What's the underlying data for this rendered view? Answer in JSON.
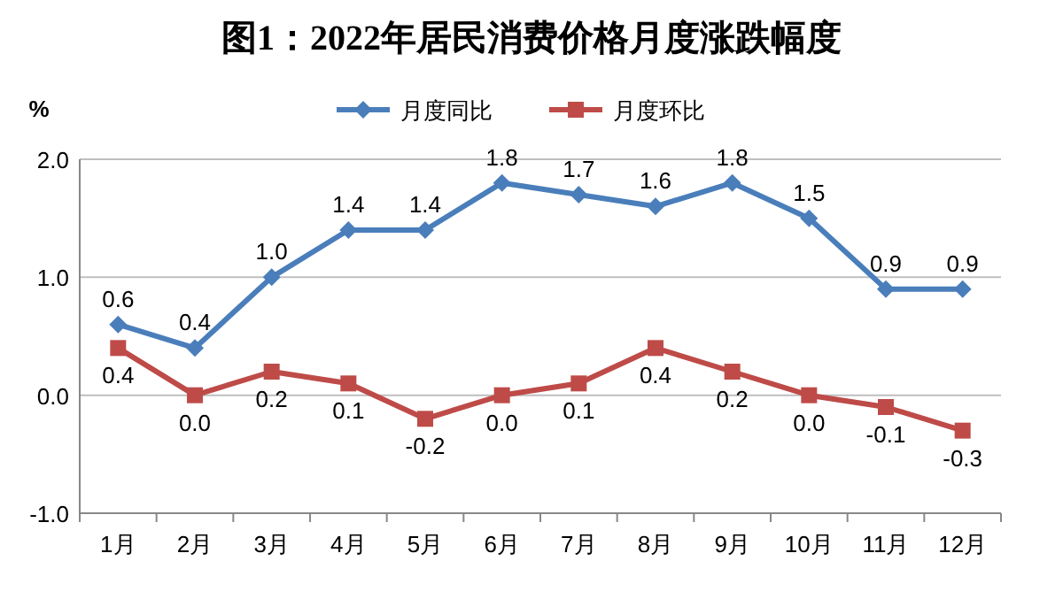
{
  "chart_data": {
    "type": "line",
    "title": "图1：2022年居民消费价格月度涨跌幅度",
    "ylabel": "%",
    "categories": [
      "1月",
      "2月",
      "3月",
      "4月",
      "5月",
      "6月",
      "7月",
      "8月",
      "9月",
      "10月",
      "11月",
      "12月"
    ],
    "series": [
      {
        "name": "月度同比",
        "color": "#4a7ebb",
        "marker": "diamond",
        "values": [
          0.6,
          0.4,
          1.0,
          1.4,
          1.4,
          1.8,
          1.7,
          1.6,
          1.8,
          1.5,
          0.9,
          0.9
        ],
        "value_labels": [
          "0.6",
          "0.4",
          "1.0",
          "1.4",
          "1.4",
          "1.8",
          "1.7",
          "1.6",
          "1.8",
          "1.5",
          "0.9",
          "0.9"
        ]
      },
      {
        "name": "月度环比",
        "color": "#be4b48",
        "marker": "square",
        "values": [
          0.4,
          0.0,
          0.2,
          0.1,
          -0.2,
          0.0,
          0.1,
          0.4,
          0.2,
          0.0,
          -0.1,
          -0.3
        ],
        "value_labels": [
          "0.4",
          "0.0",
          "0.2",
          "0.1",
          "-0.2",
          "0.0",
          "0.1",
          "0.4",
          "0.2",
          "0.0",
          "-0.1",
          "-0.3"
        ]
      }
    ],
    "ylim": [
      -1,
      2
    ],
    "yticks": [
      {
        "value": 2,
        "label": "2.0"
      },
      {
        "value": 1,
        "label": "1.0"
      },
      {
        "value": 0,
        "label": "0.0"
      },
      {
        "value": -1,
        "label": "-1.0"
      }
    ],
    "grid": "y",
    "legend": "top",
    "line_style": "solid"
  }
}
